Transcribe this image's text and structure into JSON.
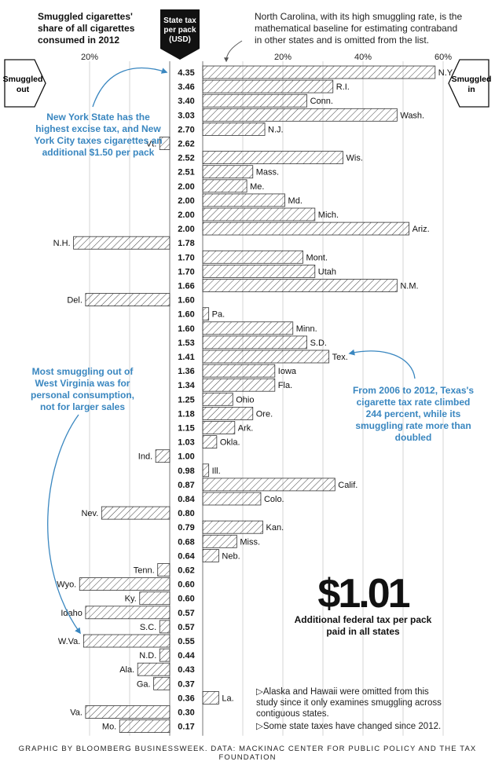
{
  "header": {
    "title": "Smuggled cigarettes' share of all cigarettes consumed in 2012",
    "tax_label": "State tax per pack (USD)",
    "note": "North Carolina, with its high smuggling rate, is the mathematical baseline for estimating contraband in other states and is omitted from the list.",
    "left_side_label": "Smuggled out",
    "right_side_label": "Smuggled in"
  },
  "annotations": {
    "new_york": "New York State has the highest excise tax, and New York City taxes cigarettes an additional $1.50 per pack",
    "west_virginia": "Most smuggling out of West Virginia was for personal consumption, not for larger sales",
    "texas": "From 2006 to 2012, Texas's cigarette tax rate climbed 244 percent, while its smuggling rate more than doubled"
  },
  "federal": {
    "value": "$1.01",
    "caption": "Additional federal tax per pack paid in all states"
  },
  "footnotes": [
    "Alaska and Hawaii were omitted from this study since it only examines smuggling across contiguous states.",
    "Some state taxes have changed since 2012."
  ],
  "credit": "GRAPHIC BY BLOOMBERG BUSINESSWEEK. DATA: MACKINAC CENTER FOR PUBLIC POLICY AND THE TAX FOUNDATION",
  "colors": {
    "accent": "#3a87c0",
    "bar_stroke": "#333333",
    "hatch": "#444444",
    "grid": "#cccccc"
  },
  "chart_data": {
    "type": "bar",
    "orientation": "horizontal-diverging",
    "unit": "% of cigarettes consumed",
    "xlim": [
      -30,
      60
    ],
    "left_ticks": [
      {
        "value": 20,
        "label": "20%"
      }
    ],
    "right_ticks": [
      {
        "value": 20,
        "label": "20%"
      },
      {
        "value": 40,
        "label": "40%"
      },
      {
        "value": 60,
        "label": "60%"
      }
    ],
    "rows": [
      {
        "state": "N.Y.",
        "tax": "4.35",
        "share": 58
      },
      {
        "state": "R.I.",
        "tax": "3.46",
        "share": 32.5
      },
      {
        "state": "Conn.",
        "tax": "3.40",
        "share": 26
      },
      {
        "state": "Wash.",
        "tax": "3.03",
        "share": 48.5
      },
      {
        "state": "N.J.",
        "tax": "2.70",
        "share": 15.5
      },
      {
        "state": "Vt.",
        "tax": "2.62",
        "share": -2.5
      },
      {
        "state": "Wis.",
        "tax": "2.52",
        "share": 35
      },
      {
        "state": "Mass.",
        "tax": "2.51",
        "share": 12.5
      },
      {
        "state": "Me.",
        "tax": "2.00",
        "share": 11
      },
      {
        "state": "Md.",
        "tax": "2.00",
        "share": 20.5
      },
      {
        "state": "Mich.",
        "tax": "2.00",
        "share": 28
      },
      {
        "state": "Ariz.",
        "tax": "2.00",
        "share": 51.5
      },
      {
        "state": "N.H.",
        "tax": "1.78",
        "share": -24
      },
      {
        "state": "Mont.",
        "tax": "1.70",
        "share": 25
      },
      {
        "state": "Utah",
        "tax": "1.70",
        "share": 28
      },
      {
        "state": "N.M.",
        "tax": "1.66",
        "share": 48.5
      },
      {
        "state": "Del.",
        "tax": "1.60",
        "share": -21
      },
      {
        "state": "Pa.",
        "tax": "1.60",
        "share": 1.5
      },
      {
        "state": "Minn.",
        "tax": "1.60",
        "share": 22.5
      },
      {
        "state": "S.D.",
        "tax": "1.53",
        "share": 26
      },
      {
        "state": "Tex.",
        "tax": "1.41",
        "share": 31.5
      },
      {
        "state": "Iowa",
        "tax": "1.36",
        "share": 18
      },
      {
        "state": "Fla.",
        "tax": "1.34",
        "share": 18
      },
      {
        "state": "Ohio",
        "tax": "1.25",
        "share": 7.5
      },
      {
        "state": "Ore.",
        "tax": "1.18",
        "share": 12.5
      },
      {
        "state": "Ark.",
        "tax": "1.15",
        "share": 8
      },
      {
        "state": "Okla.",
        "tax": "1.03",
        "share": 3.5
      },
      {
        "state": "Ind.",
        "tax": "1.00",
        "share": -3.5
      },
      {
        "state": "Ill.",
        "tax": "0.98",
        "share": 1.5
      },
      {
        "state": "Calif.",
        "tax": "0.87",
        "share": 33
      },
      {
        "state": "Colo.",
        "tax": "0.84",
        "share": 14.5
      },
      {
        "state": "Nev.",
        "tax": "0.80",
        "share": -17
      },
      {
        "state": "Kan.",
        "tax": "0.79",
        "share": 15
      },
      {
        "state": "Miss.",
        "tax": "0.68",
        "share": 8.5
      },
      {
        "state": "Neb.",
        "tax": "0.64",
        "share": 4
      },
      {
        "state": "Tenn.",
        "tax": "0.62",
        "share": -3
      },
      {
        "state": "Wyo.",
        "tax": "0.60",
        "share": -22.5
      },
      {
        "state": "Ky.",
        "tax": "0.60",
        "share": -7.5
      },
      {
        "state": "Idaho",
        "tax": "0.57",
        "share": -21
      },
      {
        "state": "S.C.",
        "tax": "0.57",
        "share": -2.5
      },
      {
        "state": "W.Va.",
        "tax": "0.55",
        "share": -21.5
      },
      {
        "state": "N.D.",
        "tax": "0.44",
        "share": -2.5
      },
      {
        "state": "Ala.",
        "tax": "0.43",
        "share": -8
      },
      {
        "state": "Ga.",
        "tax": "0.37",
        "share": -4
      },
      {
        "state": "La.",
        "tax": "0.36",
        "share": 4
      },
      {
        "state": "Va.",
        "tax": "0.30",
        "share": -21
      },
      {
        "state": "Mo.",
        "tax": "0.17",
        "share": -12.5
      }
    ]
  }
}
